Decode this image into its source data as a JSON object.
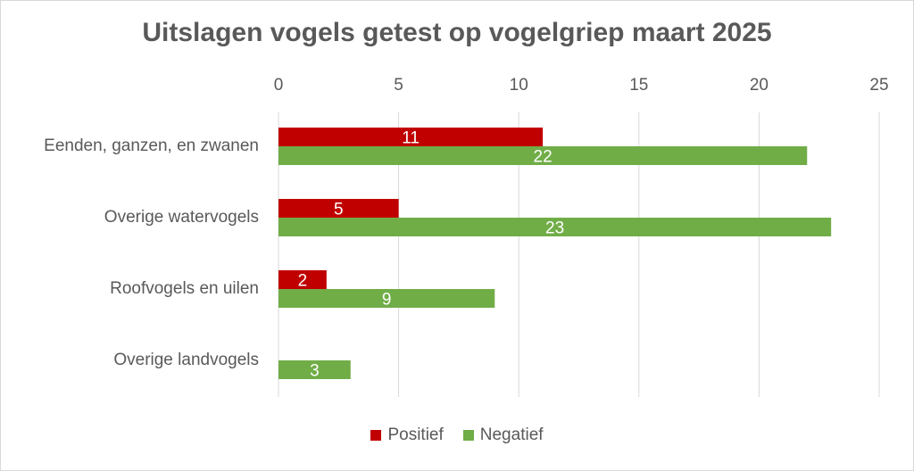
{
  "chart_data": {
    "type": "bar",
    "orientation": "horizontal",
    "title": "Uitslagen vogels getest op vogelgriep maart 2025",
    "categories": [
      "Eenden, ganzen, en zwanen",
      "Overige watervogels",
      "Roofvogels en uilen",
      "Overige landvogels"
    ],
    "series": [
      {
        "name": "Positief",
        "color": "#c00000",
        "values": [
          11,
          5,
          2,
          0
        ]
      },
      {
        "name": "Negatief",
        "color": "#70ad47",
        "values": [
          22,
          23,
          9,
          3
        ]
      }
    ],
    "xlim": [
      0,
      25
    ],
    "xticks": [
      0,
      5,
      10,
      15,
      20,
      25
    ],
    "axis_position": "top",
    "grid": true,
    "data_labels": true,
    "legend_position": "bottom"
  }
}
